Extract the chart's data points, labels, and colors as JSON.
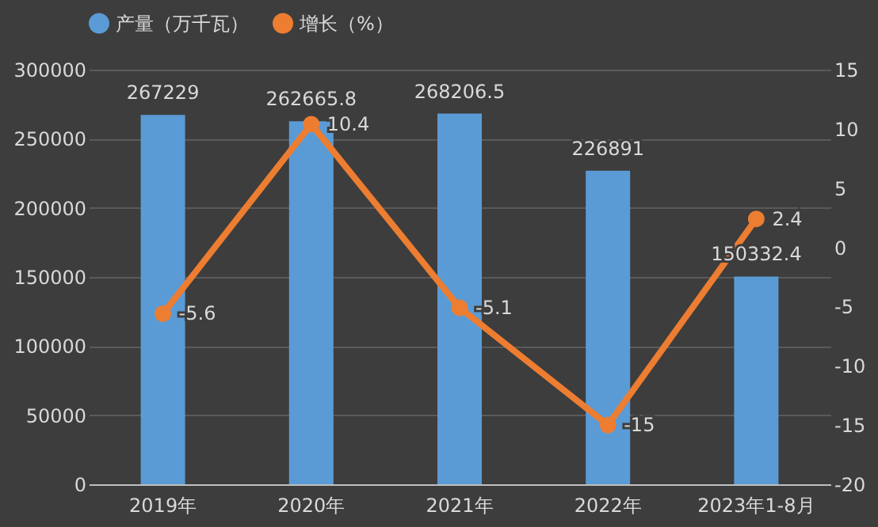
{
  "chart_data": {
    "type": "bar",
    "categories": [
      "2019年",
      "2020年",
      "2021年",
      "2022年",
      "2023年1-8月"
    ],
    "series": [
      {
        "name": "产量（万千瓦）",
        "color": "#5b9bd5",
        "values": [
          267229,
          262665.8,
          268206.5,
          226891,
          150332.4
        ]
      },
      {
        "name": "增长（%）",
        "type": "line",
        "axis": "y2",
        "color": "#ed7d31",
        "marker": "circle",
        "values": [
          -5.6,
          10.4,
          -5.1,
          -15,
          2.4
        ]
      }
    ],
    "ylim": [
      0,
      300000
    ],
    "yticks": [
      0,
      50000,
      100000,
      150000,
      200000,
      250000,
      300000
    ],
    "y2lim": [
      -20,
      15
    ],
    "y2ticks": [
      -20,
      -15,
      -10,
      -5,
      0,
      5,
      10,
      15
    ],
    "grid": "y",
    "legend": "top",
    "data_labels": true
  }
}
